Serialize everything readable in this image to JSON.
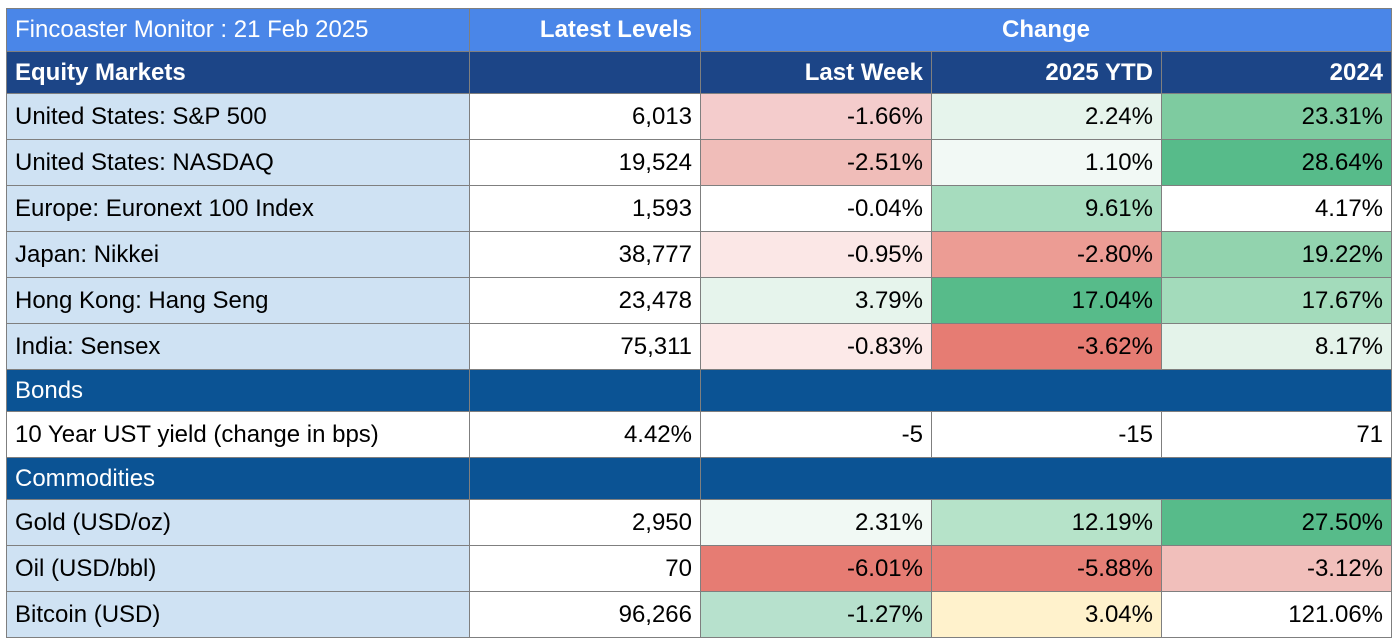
{
  "title": "Fincoaster Monitor : 21 Feb 2025",
  "latest_levels_label": "Latest Levels",
  "change_label": "Change",
  "equity_section": "Equity Markets",
  "columns": [
    "Last Week",
    "2025 YTD",
    "2024"
  ],
  "equity_rows": [
    {
      "label": "United States: S&P 500",
      "level": "6,013",
      "last_week": "-1.66%",
      "ytd": "2.24%",
      "y2024": "23.31%"
    },
    {
      "label": "United States: NASDAQ",
      "level": "19,524",
      "last_week": "-2.51%",
      "ytd": "1.10%",
      "y2024": "28.64%"
    },
    {
      "label": "Europe: Euronext 100 Index",
      "level": "1,593",
      "last_week": "-0.04%",
      "ytd": "9.61%",
      "y2024": "4.17%"
    },
    {
      "label": "Japan: Nikkei",
      "level": "38,777",
      "last_week": "-0.95%",
      "ytd": "-2.80%",
      "y2024": "19.22%"
    },
    {
      "label": "Hong Kong: Hang Seng",
      "level": "23,478",
      "last_week": "3.79%",
      "ytd": "17.04%",
      "y2024": "17.67%"
    },
    {
      "label": "India: Sensex",
      "level": "75,311",
      "last_week": "-0.83%",
      "ytd": "-3.62%",
      "y2024": "8.17%"
    }
  ],
  "bonds_section": "Bonds",
  "bond_rows": [
    {
      "label": "10 Year UST yield (change in bps)",
      "level": "4.42%",
      "last_week": "-5",
      "ytd": "-15",
      "y2024": "71"
    }
  ],
  "commodities_section": "Commodities",
  "commodity_rows": [
    {
      "label": "Gold (USD/oz)",
      "level": "2,950",
      "last_week": "2.31%",
      "ytd": "12.19%",
      "y2024": "27.50%"
    },
    {
      "label": "Oil (USD/bbl)",
      "level": "70",
      "last_week": "-6.01%",
      "ytd": "-5.88%",
      "y2024": "-3.12%"
    },
    {
      "label": "Bitcoin (USD)",
      "level": "96,266",
      "last_week": "-1.27%",
      "ytd": "3.04%",
      "y2024": "121.06%"
    }
  ],
  "cell_colors": {
    "equity": [
      [
        "#f4cccc",
        "#e6f4ec",
        "#7ecba0"
      ],
      [
        "#f0bdb9",
        "#f2f9f5",
        "#57bb8a"
      ],
      [
        "#ffffff",
        "#a6dcbe",
        "#ffffff"
      ],
      [
        "#fbe7e6",
        "#ec9c94",
        "#92d3ae"
      ],
      [
        "#e6f4ec",
        "#57bb8a",
        "#a3dbbb"
      ],
      [
        "#fce9e8",
        "#e67c73",
        "#e4f3ea"
      ]
    ],
    "bonds": [
      [
        "#ffffff",
        "#ffffff",
        "#ffffff"
      ]
    ],
    "commodities": [
      [
        "#f1f9f4",
        "#b6e3c9",
        "#57bb8a"
      ],
      [
        "#e67c73",
        "#e67f76",
        "#f1bfbb"
      ],
      [
        "#b7e1cd",
        "#fff2cc",
        "#ffffff"
      ]
    ]
  }
}
